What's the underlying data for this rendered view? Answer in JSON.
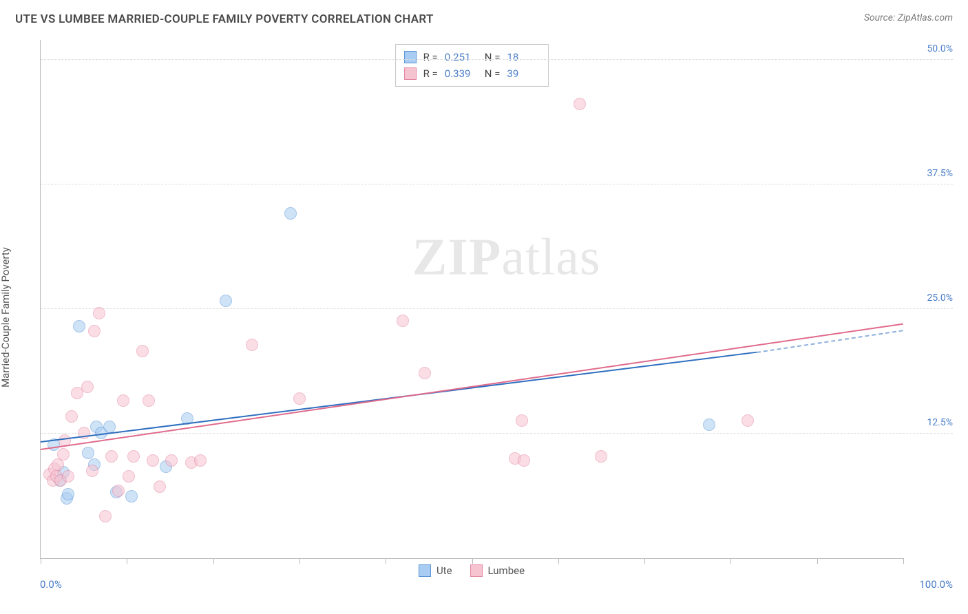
{
  "header": {
    "title": "UTE VS LUMBEE MARRIED-COUPLE FAMILY POVERTY CORRELATION CHART",
    "source_label": "Source:",
    "source_name": "ZipAtlas.com"
  },
  "watermark": {
    "bold": "ZIP",
    "light": "atlas"
  },
  "chart": {
    "type": "scatter",
    "background_color": "#ffffff",
    "grid_color": "#dcdcdc",
    "axis_color": "#b8b8b8",
    "value_color": "#4a7ec9",
    "text_color": "#555555",
    "ylabel": "Married-Couple Family Poverty",
    "label_fontsize": 15,
    "tick_fontsize": 14,
    "xlim": [
      0,
      100
    ],
    "ylim": [
      0,
      52
    ],
    "xticks": [
      0,
      10,
      20,
      30,
      40,
      50,
      60,
      70,
      80,
      90,
      100
    ],
    "xtick_labels": {
      "min": "0.0%",
      "max": "100.0%"
    },
    "yticks": [
      12.5,
      25.0,
      37.5,
      50.0
    ],
    "ytick_labels": [
      "12.5%",
      "25.0%",
      "37.5%",
      "50.0%"
    ],
    "point_radius": 9,
    "point_opacity": 0.55,
    "series": [
      {
        "name": "Ute",
        "fill": "#a9cdf2",
        "stroke": "#5a94d6",
        "trend_color": "#2f6fc0",
        "R": "0.251",
        "N": "18",
        "trend": {
          "x0": 0,
          "y0": 11.6,
          "x1": 83,
          "y1": 20.6,
          "ext_x1": 100,
          "ext_y1": 22.8
        },
        "points": [
          [
            1.5,
            11.4
          ],
          [
            2.2,
            7.8
          ],
          [
            2.6,
            8.6
          ],
          [
            3.0,
            6.0
          ],
          [
            3.2,
            6.4
          ],
          [
            4.5,
            23.3
          ],
          [
            5.5,
            10.6
          ],
          [
            6.2,
            9.4
          ],
          [
            6.5,
            13.2
          ],
          [
            7.0,
            12.6
          ],
          [
            8.0,
            13.2
          ],
          [
            8.8,
            6.6
          ],
          [
            10.5,
            6.2
          ],
          [
            14.5,
            9.2
          ],
          [
            17.0,
            14.0
          ],
          [
            21.5,
            25.8
          ],
          [
            29.0,
            34.6
          ],
          [
            77.5,
            13.4
          ]
        ]
      },
      {
        "name": "Lumbee",
        "fill": "#f6c3d0",
        "stroke": "#e488a2",
        "trend_color": "#e06a8c",
        "R": "0.339",
        "N": "39",
        "trend": {
          "x0": 0,
          "y0": 10.8,
          "x1": 100,
          "y1": 23.4
        },
        "points": [
          [
            1.0,
            8.4
          ],
          [
            1.4,
            7.8
          ],
          [
            1.6,
            9.0
          ],
          [
            1.8,
            8.2
          ],
          [
            2.0,
            9.4
          ],
          [
            2.3,
            7.8
          ],
          [
            2.6,
            10.4
          ],
          [
            2.8,
            11.8
          ],
          [
            3.2,
            8.2
          ],
          [
            3.6,
            14.2
          ],
          [
            4.2,
            16.6
          ],
          [
            5.0,
            12.6
          ],
          [
            5.4,
            17.2
          ],
          [
            6.0,
            8.8
          ],
          [
            6.2,
            22.8
          ],
          [
            6.8,
            24.6
          ],
          [
            7.5,
            4.2
          ],
          [
            8.2,
            10.2
          ],
          [
            9.0,
            6.8
          ],
          [
            9.6,
            15.8
          ],
          [
            10.2,
            8.2
          ],
          [
            10.8,
            10.2
          ],
          [
            11.8,
            20.8
          ],
          [
            12.5,
            15.8
          ],
          [
            13.0,
            9.8
          ],
          [
            13.8,
            7.2
          ],
          [
            15.2,
            9.8
          ],
          [
            17.5,
            9.6
          ],
          [
            18.5,
            9.8
          ],
          [
            24.5,
            21.4
          ],
          [
            30.0,
            16.0
          ],
          [
            42.0,
            23.8
          ],
          [
            44.5,
            18.6
          ],
          [
            55.0,
            10.0
          ],
          [
            55.8,
            13.8
          ],
          [
            56.0,
            9.8
          ],
          [
            62.5,
            45.6
          ],
          [
            65.0,
            10.2
          ],
          [
            82.0,
            13.8
          ]
        ]
      }
    ],
    "legend_top": {
      "r_label": "R  =",
      "n_label": "N  ="
    },
    "legend_bottom": [
      {
        "label": "Ute",
        "fill": "#a9cdf2",
        "stroke": "#5a94d6"
      },
      {
        "label": "Lumbee",
        "fill": "#f6c3d0",
        "stroke": "#e488a2"
      }
    ]
  }
}
